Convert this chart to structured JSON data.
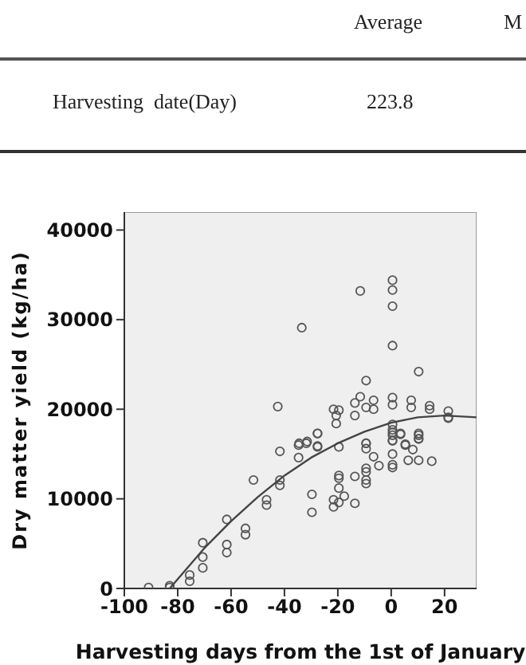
{
  "chart_data": {
    "type": "scatter",
    "annotations": [
      "Average",
      "M",
      "Harvesting  date(Day)",
      "223.8"
    ],
    "xlabel": "Harvesting days from the 1st of January",
    "ylabel": "Dry matter yield (kg/ha)",
    "xlim": [
      -100,
      32
    ],
    "xticks": [
      -100,
      -80,
      -60,
      -40,
      -20,
      0,
      20
    ],
    "ylim": [
      0,
      42000
    ],
    "yticks": [
      0,
      10000,
      20000,
      30000,
      40000
    ],
    "grid": false,
    "series": [
      {
        "marker": "circle",
        "color": "#555555",
        "x": [
          -42.5,
          -33.5,
          -11.6,
          0.5,
          0.5,
          0.5,
          0.5,
          10.3,
          -9.4,
          -11.6,
          -13.6,
          -13.6,
          -9.4,
          -6.6,
          -6.6,
          0.5,
          0.5,
          7.5,
          7.5,
          14.4,
          14.4,
          21.4,
          21.4,
          -21.6,
          -19.6,
          -20.6,
          -20.6,
          -27.6,
          -34.5,
          -31.5,
          -27.6,
          -9.4,
          0.5,
          0.5,
          0.5,
          3.5,
          0.5,
          5.3,
          10.3,
          10.3,
          -90.9,
          -83,
          -83,
          -75.5,
          -75.5,
          -70.6,
          -70.6,
          -70.6,
          -61.6,
          -61.6,
          -61.6,
          -54.6,
          -54.6,
          -51.6,
          -46.7,
          -46.7,
          -41.7,
          -41.7,
          -41.7,
          -34.7,
          -34.7,
          -31.8,
          -27.6,
          -27.6,
          -29.7,
          -29.7,
          -19.6,
          -19.6,
          -19.6,
          -19.6,
          -21.6,
          -21.6,
          -19.6,
          -17.6,
          -13.6,
          -13.6,
          -9.4,
          -9.4,
          -9.4,
          -9.4,
          -9.4,
          -9.4,
          -6.6,
          -4.6,
          0.5,
          0.5,
          0.5,
          0.5,
          0.5,
          3.5,
          5.3,
          8.1,
          6.4,
          10.3,
          10.3,
          10.3,
          15.2,
          21.4
        ],
        "values": [
          20300,
          29100,
          33200,
          34400,
          33300,
          31500,
          27100,
          24200,
          23200,
          21400,
          20700,
          19300,
          20200,
          21000,
          20000,
          21300,
          20500,
          21000,
          20200,
          20400,
          20000,
          19800,
          19100,
          20000,
          19900,
          19300,
          18400,
          17300,
          16200,
          16400,
          15900,
          16200,
          18300,
          17700,
          17100,
          17300,
          16500,
          16100,
          17300,
          16700,
          100,
          300,
          100,
          1500,
          800,
          5100,
          3500,
          2300,
          7700,
          4900,
          4000,
          6700,
          6000,
          12100,
          9900,
          9300,
          15300,
          12100,
          11500,
          16000,
          14600,
          16200,
          17300,
          15800,
          10500,
          8500,
          15800,
          12600,
          12300,
          11200,
          9900,
          9100,
          9600,
          10300,
          9500,
          12500,
          16200,
          15600,
          13400,
          13000,
          12100,
          11700,
          14700,
          13700,
          17400,
          16500,
          15000,
          13800,
          13500,
          17200,
          16000,
          15500,
          14300,
          14300,
          17100,
          16700,
          14200,
          19000
        ]
      },
      {
        "type": "line",
        "marker": "none",
        "color": "#444444",
        "x": [
          -83,
          -70,
          -60,
          -50,
          -40,
          -30,
          -20,
          -10,
          0,
          10,
          20,
          32
        ],
        "values": [
          0,
          4500,
          7500,
          10200,
          12600,
          14600,
          16200,
          17500,
          18500,
          19100,
          19300,
          19100
        ]
      }
    ]
  }
}
